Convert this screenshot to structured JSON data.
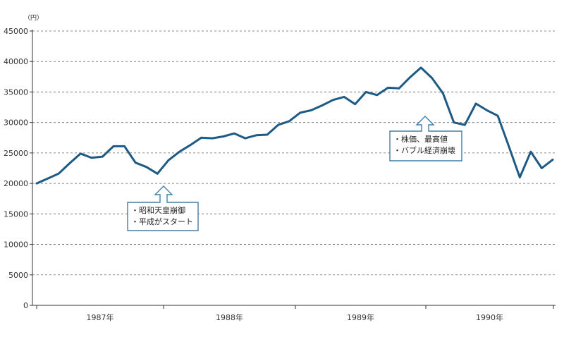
{
  "chart_data": {
    "type": "line",
    "title": "",
    "xlabel": "",
    "ylabel": "",
    "unit_label": "（円）",
    "ylim": [
      0,
      45000
    ],
    "y_ticks": [
      "0",
      "5000",
      "10000",
      "15000",
      "20000",
      "25000",
      "30000",
      "35000",
      "40000",
      "45000"
    ],
    "x_ticks": [
      "1987年",
      "1988年",
      "1989年",
      "1990年"
    ],
    "grid": "horizontal-dashed",
    "line_color": "#1d5a85",
    "box_border_color": "#3e7fa4",
    "series": [
      {
        "values": [
          20000,
          20800,
          21600,
          23300,
          24900,
          24200,
          24400,
          26100,
          26100,
          23400,
          22700,
          21600,
          23800,
          25200,
          26300,
          27500,
          27400,
          27700,
          28200,
          27400,
          27900,
          28000,
          29600,
          30200,
          31600,
          32000,
          32800,
          33700,
          34200,
          33000,
          35000,
          34500,
          35700,
          35600,
          37400,
          39000,
          37300,
          34800,
          30000,
          29600,
          33100,
          32000,
          31100,
          26100,
          21000,
          25200,
          22500,
          23900
        ]
      }
    ],
    "annotations": [
      {
        "lines": [
          "・昭和天皇崩御",
          "・平成がスタート"
        ]
      },
      {
        "lines": [
          "・株価、最高値",
          "・バブル経済崩壊"
        ]
      }
    ]
  }
}
